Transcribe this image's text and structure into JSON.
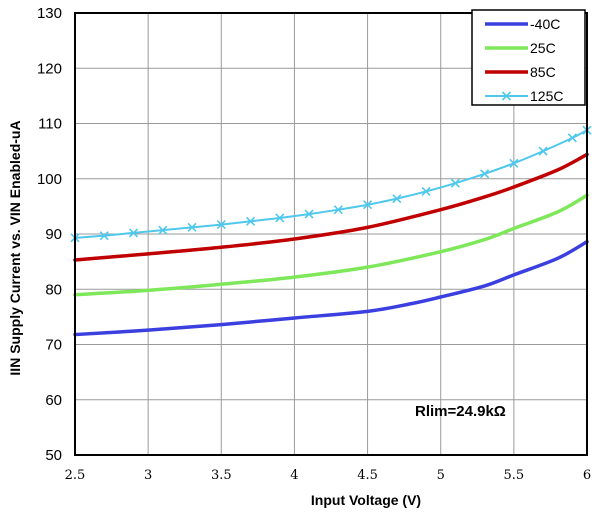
{
  "chart_data": {
    "type": "line",
    "xlabel": "Input Voltage  (V)",
    "ylabel": "IIN Supply Current vs. VIN Enabled-uA",
    "xlim": [
      2.5,
      6
    ],
    "ylim": [
      50,
      130
    ],
    "x_ticks": [
      "2.5",
      "3",
      "3.5",
      "4",
      "4.5",
      "5",
      "5.5",
      "6"
    ],
    "y_ticks": [
      "50",
      "60",
      "70",
      "80",
      "90",
      "100",
      "110",
      "120",
      "130"
    ],
    "grid": true,
    "legend_position": "top-right",
    "annotation": "Rlim=24.9kΩ",
    "series": [
      {
        "name": "-40C",
        "color": "#3b3fe0",
        "x": [
          2.5,
          3.0,
          3.5,
          4.0,
          4.5,
          4.8,
          5.0,
          5.3,
          5.5,
          5.8,
          6.0
        ],
        "y": [
          71.8,
          72.6,
          73.6,
          74.8,
          76.0,
          77.4,
          78.6,
          80.6,
          82.6,
          85.6,
          88.6
        ]
      },
      {
        "name": "25C",
        "color": "#7ee85a",
        "x": [
          2.5,
          3.0,
          3.5,
          4.0,
          4.5,
          5.0,
          5.3,
          5.5,
          5.8,
          6.0
        ],
        "y": [
          79.0,
          79.8,
          80.9,
          82.2,
          84.0,
          86.8,
          89.0,
          91.0,
          94.0,
          97.0
        ]
      },
      {
        "name": "85C",
        "color": "#c00000",
        "x": [
          2.5,
          3.0,
          3.5,
          4.0,
          4.5,
          5.0,
          5.3,
          5.5,
          5.8,
          6.0
        ],
        "y": [
          85.3,
          86.4,
          87.6,
          89.1,
          91.2,
          94.4,
          96.7,
          98.5,
          101.6,
          104.4
        ]
      },
      {
        "name": "125C",
        "color": "#4fc8ec",
        "marker": "x",
        "x": [
          2.5,
          2.7,
          2.9,
          3.1,
          3.3,
          3.5,
          3.7,
          3.9,
          4.1,
          4.3,
          4.5,
          4.7,
          4.9,
          5.1,
          5.3,
          5.5,
          5.7,
          5.9,
          6.0
        ],
        "y": [
          89.3,
          89.7,
          90.2,
          90.7,
          91.2,
          91.7,
          92.3,
          92.9,
          93.6,
          94.4,
          95.3,
          96.4,
          97.7,
          99.2,
          100.9,
          102.8,
          105.0,
          107.4,
          108.8
        ]
      }
    ]
  }
}
